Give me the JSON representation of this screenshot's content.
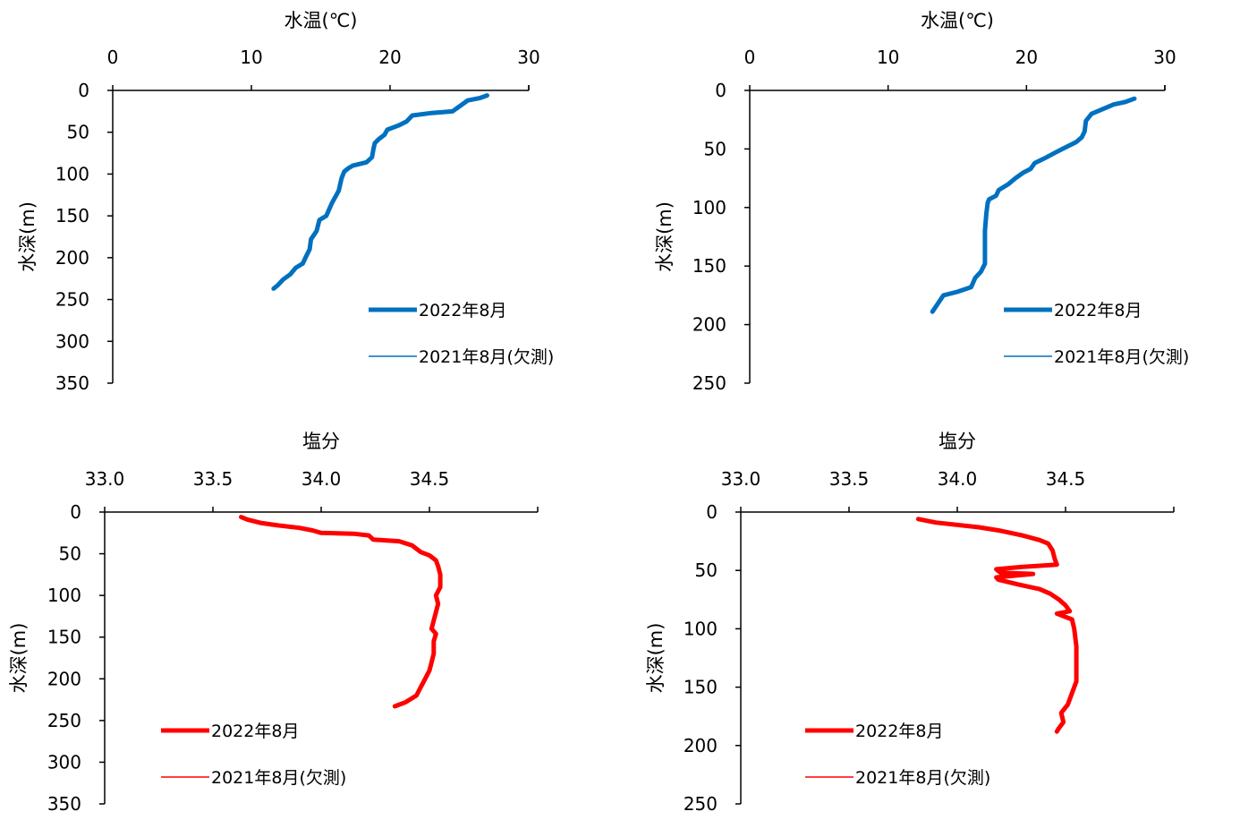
{
  "chart_data": [
    {
      "type": "line",
      "title": "水温(℃)",
      "xlabel": "水温(℃)",
      "ylabel": "水深(m)",
      "xlim": [
        0,
        30
      ],
      "ylim": [
        0,
        350
      ],
      "x_ticks": [
        "0",
        "10",
        "20",
        "30"
      ],
      "y_ticks": [
        "0",
        "50",
        "100",
        "150",
        "200",
        "250",
        "300",
        "350"
      ],
      "x_axis_position": "top",
      "y_inverted": true,
      "grid": false,
      "legend_position": "bottom-right",
      "series": [
        {
          "name": "2022年8月",
          "color": "#0070C0",
          "style": "thick",
          "points": [
            [
              27.0,
              6
            ],
            [
              26.5,
              9
            ],
            [
              25.6,
              12
            ],
            [
              25.1,
              18
            ],
            [
              24.5,
              25
            ],
            [
              23.0,
              27
            ],
            [
              21.6,
              30
            ],
            [
              21.2,
              37
            ],
            [
              20.6,
              42
            ],
            [
              19.8,
              47
            ],
            [
              19.6,
              53
            ],
            [
              19.2,
              58
            ],
            [
              18.9,
              63
            ],
            [
              18.8,
              70
            ],
            [
              18.7,
              80
            ],
            [
              18.3,
              86
            ],
            [
              17.3,
              90
            ],
            [
              17.0,
              93
            ],
            [
              16.7,
              97
            ],
            [
              16.5,
              105
            ],
            [
              16.3,
              120
            ],
            [
              15.8,
              135
            ],
            [
              15.4,
              150
            ],
            [
              14.9,
              155
            ],
            [
              14.7,
              168
            ],
            [
              14.3,
              178
            ],
            [
              14.2,
              190
            ],
            [
              13.9,
              200
            ],
            [
              13.7,
              207
            ],
            [
              13.2,
              212
            ],
            [
              12.8,
              220
            ],
            [
              12.3,
              226
            ],
            [
              11.9,
              233
            ],
            [
              11.6,
              237
            ]
          ]
        },
        {
          "name": "2021年8月(欠測)",
          "color": "#0070C0",
          "style": "thin",
          "points": []
        }
      ]
    },
    {
      "type": "line",
      "title": "水温(℃)",
      "xlabel": "水温(℃)",
      "ylabel": "水深(m)",
      "xlim": [
        0,
        30
      ],
      "ylim": [
        0,
        250
      ],
      "x_ticks": [
        "0",
        "10",
        "20",
        "30"
      ],
      "y_ticks": [
        "0",
        "50",
        "100",
        "150",
        "200",
        "250"
      ],
      "x_axis_position": "top",
      "y_inverted": true,
      "grid": false,
      "legend_position": "bottom-right",
      "series": [
        {
          "name": "2022年8月",
          "color": "#0070C0",
          "style": "thick",
          "points": [
            [
              27.8,
              7
            ],
            [
              27.1,
              10
            ],
            [
              26.3,
              12
            ],
            [
              25.5,
              16
            ],
            [
              24.7,
              20
            ],
            [
              24.3,
              26
            ],
            [
              24.2,
              35
            ],
            [
              24.0,
              40
            ],
            [
              23.6,
              44
            ],
            [
              22.6,
              50
            ],
            [
              22.1,
              53
            ],
            [
              21.3,
              58
            ],
            [
              20.6,
              62
            ],
            [
              20.3,
              67
            ],
            [
              19.8,
              70
            ],
            [
              19.2,
              75
            ],
            [
              18.7,
              80
            ],
            [
              18.0,
              85
            ],
            [
              17.8,
              90
            ],
            [
              17.3,
              93
            ],
            [
              17.2,
              96
            ],
            [
              17.1,
              105
            ],
            [
              17.0,
              120
            ],
            [
              17.0,
              135
            ],
            [
              17.0,
              148
            ],
            [
              16.7,
              155
            ],
            [
              16.3,
              160
            ],
            [
              16.0,
              168
            ],
            [
              15.0,
              172
            ],
            [
              14.0,
              175
            ],
            [
              13.6,
              182
            ],
            [
              13.2,
              189
            ]
          ]
        },
        {
          "name": "2021年8月(欠測)",
          "color": "#0070C0",
          "style": "thin",
          "points": []
        }
      ]
    },
    {
      "type": "line",
      "title": "塩分",
      "xlabel": "塩分",
      "ylabel": "水深(m)",
      "xlim": [
        33.0,
        35.0
      ],
      "ylim": [
        0,
        350
      ],
      "x_ticks": [
        "33.0",
        "33.5",
        "34.0",
        "34.5"
      ],
      "y_ticks": [
        "0",
        "50",
        "100",
        "150",
        "200",
        "250",
        "300",
        "350"
      ],
      "x_axis_position": "top",
      "y_inverted": true,
      "grid": false,
      "legend_position": "bottom-left",
      "series": [
        {
          "name": "2022年8月",
          "color": "#FF0000",
          "style": "thick",
          "points": [
            [
              33.63,
              6
            ],
            [
              33.66,
              9
            ],
            [
              33.72,
              13
            ],
            [
              33.8,
              16
            ],
            [
              33.9,
              19
            ],
            [
              33.96,
              22
            ],
            [
              34.0,
              25
            ],
            [
              34.15,
              26
            ],
            [
              34.22,
              28
            ],
            [
              34.24,
              33
            ],
            [
              34.36,
              35
            ],
            [
              34.42,
              40
            ],
            [
              34.46,
              48
            ],
            [
              34.5,
              52
            ],
            [
              34.53,
              58
            ],
            [
              34.54,
              65
            ],
            [
              34.55,
              75
            ],
            [
              34.55,
              90
            ],
            [
              34.53,
              100
            ],
            [
              34.54,
              110
            ],
            [
              34.53,
              120
            ],
            [
              34.52,
              130
            ],
            [
              34.51,
              140
            ],
            [
              34.53,
              146
            ],
            [
              34.52,
              155
            ],
            [
              34.52,
              170
            ],
            [
              34.51,
              180
            ],
            [
              34.5,
              190
            ],
            [
              34.48,
              200
            ],
            [
              34.46,
              210
            ],
            [
              34.44,
              220
            ],
            [
              34.39,
              228
            ],
            [
              34.34,
              233
            ]
          ]
        },
        {
          "name": "2021年8月(欠測)",
          "color": "#FF0000",
          "style": "thin",
          "points": []
        }
      ]
    },
    {
      "type": "line",
      "title": "塩分",
      "xlabel": "塩分",
      "ylabel": "水深(m)",
      "xlim": [
        33.0,
        35.0
      ],
      "ylim": [
        0,
        250
      ],
      "x_ticks": [
        "33.0",
        "33.5",
        "34.0",
        "34.5"
      ],
      "y_ticks": [
        "0",
        "50",
        "100",
        "150",
        "200",
        "250"
      ],
      "x_axis_position": "top",
      "y_inverted": true,
      "grid": false,
      "legend_position": "bottom-left",
      "series": [
        {
          "name": "2022年8月",
          "color": "#FF0000",
          "style": "thick",
          "points": [
            [
              33.82,
              6
            ],
            [
              33.9,
              9
            ],
            [
              34.1,
              13
            ],
            [
              34.2,
              16
            ],
            [
              34.3,
              20
            ],
            [
              34.38,
              24
            ],
            [
              34.42,
              27
            ],
            [
              34.44,
              33
            ],
            [
              34.45,
              40
            ],
            [
              34.46,
              45
            ],
            [
              34.3,
              47
            ],
            [
              34.18,
              49
            ],
            [
              34.2,
              52
            ],
            [
              34.35,
              53
            ],
            [
              34.18,
              56
            ],
            [
              34.19,
              58
            ],
            [
              34.28,
              62
            ],
            [
              34.38,
              66
            ],
            [
              34.43,
              70
            ],
            [
              34.47,
              75
            ],
            [
              34.5,
              80
            ],
            [
              34.52,
              85
            ],
            [
              34.46,
              87
            ],
            [
              34.53,
              92
            ],
            [
              34.54,
              100
            ],
            [
              34.55,
              115
            ],
            [
              34.55,
              130
            ],
            [
              34.55,
              145
            ],
            [
              34.53,
              155
            ],
            [
              34.51,
              165
            ],
            [
              34.48,
              172
            ],
            [
              34.49,
              180
            ],
            [
              34.47,
              185
            ],
            [
              34.46,
              188
            ]
          ]
        },
        {
          "name": "2021年8月(欠測)",
          "color": "#FF0000",
          "style": "thin",
          "points": []
        }
      ]
    }
  ]
}
